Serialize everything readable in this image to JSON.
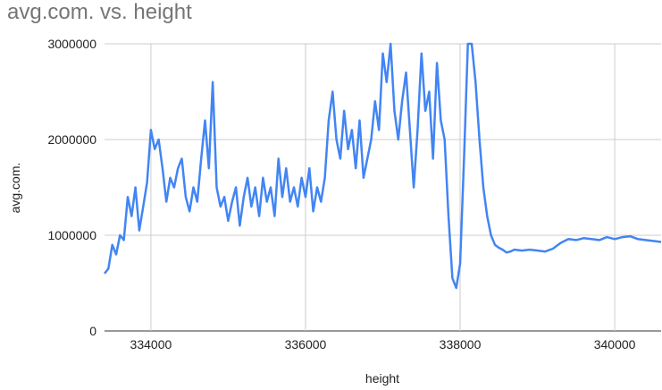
{
  "chart_data": {
    "type": "line",
    "title": "avg.com. vs. height",
    "xlabel": "height",
    "ylabel": "avg.com.",
    "xlim": [
      333400,
      340600
    ],
    "ylim": [
      0,
      3000000
    ],
    "x_ticks": [
      334000,
      336000,
      338000,
      340000
    ],
    "x_tick_labels": [
      "334000",
      "336000",
      "338000",
      "340000"
    ],
    "y_ticks": [
      0,
      1000000,
      2000000,
      3000000
    ],
    "y_tick_labels": [
      "0",
      "1000000",
      "2000000",
      "3000000"
    ],
    "grid": true,
    "legend": "none",
    "series_color": "#4285f4",
    "grid_color": "#cccccc",
    "series": [
      {
        "x": [
          333400,
          333450,
          333500,
          333550,
          333600,
          333650,
          333700,
          333750,
          333800,
          333850,
          333900,
          333950,
          334000,
          334050,
          334100,
          334150,
          334200,
          334250,
          334300,
          334350,
          334400,
          334450,
          334500,
          334550,
          334600,
          334650,
          334700,
          334750,
          334800,
          334850,
          334900,
          334950,
          335000,
          335050,
          335100,
          335150,
          335200,
          335250,
          335300,
          335350,
          335400,
          335450,
          335500,
          335550,
          335600,
          335650,
          335700,
          335750,
          335800,
          335850,
          335900,
          335950,
          336000,
          336050,
          336100,
          336150,
          336200,
          336250,
          336300,
          336350,
          336400,
          336450,
          336500,
          336550,
          336600,
          336650,
          336700,
          336750,
          336800,
          336850,
          336900,
          336950,
          337000,
          337050,
          337100,
          337150,
          337200,
          337250,
          337300,
          337350,
          337400,
          337450,
          337500,
          337550,
          337600,
          337650,
          337700,
          337750,
          337800,
          337850,
          337900,
          337950,
          338000,
          338050,
          338100,
          338150,
          338200,
          338250,
          338300,
          338350,
          338400,
          338450,
          338500,
          338550,
          338600,
          338650,
          338700,
          338800,
          338900,
          339000,
          339100,
          339200,
          339300,
          339400,
          339500,
          339600,
          339700,
          339800,
          339900,
          340000,
          340100,
          340200,
          340300,
          340400,
          340500,
          340600
        ],
        "y": [
          600000,
          650000,
          900000,
          800000,
          1000000,
          950000,
          1400000,
          1200000,
          1500000,
          1050000,
          1300000,
          1550000,
          2100000,
          1900000,
          2000000,
          1700000,
          1350000,
          1600000,
          1500000,
          1700000,
          1800000,
          1400000,
          1250000,
          1500000,
          1350000,
          1800000,
          2200000,
          1700000,
          2600000,
          1500000,
          1300000,
          1400000,
          1150000,
          1350000,
          1500000,
          1100000,
          1400000,
          1600000,
          1300000,
          1500000,
          1200000,
          1600000,
          1350000,
          1500000,
          1200000,
          1800000,
          1400000,
          1700000,
          1350000,
          1500000,
          1300000,
          1600000,
          1400000,
          1700000,
          1250000,
          1500000,
          1350000,
          1600000,
          2200000,
          2500000,
          2000000,
          1800000,
          2300000,
          1900000,
          2100000,
          1700000,
          2200000,
          1600000,
          1800000,
          2000000,
          2400000,
          2100000,
          2900000,
          2600000,
          3000000,
          2300000,
          2000000,
          2400000,
          2700000,
          2100000,
          1500000,
          2100000,
          2900000,
          2300000,
          2500000,
          1800000,
          2800000,
          2200000,
          2000000,
          1200000,
          550000,
          450000,
          700000,
          1800000,
          3050000,
          3100000,
          2600000,
          2000000,
          1500000,
          1200000,
          1000000,
          900000,
          870000,
          850000,
          820000,
          830000,
          850000,
          840000,
          850000,
          840000,
          830000,
          860000,
          920000,
          960000,
          950000,
          970000,
          960000,
          950000,
          980000,
          960000,
          980000,
          990000,
          960000,
          950000,
          940000,
          930000
        ]
      }
    ]
  }
}
